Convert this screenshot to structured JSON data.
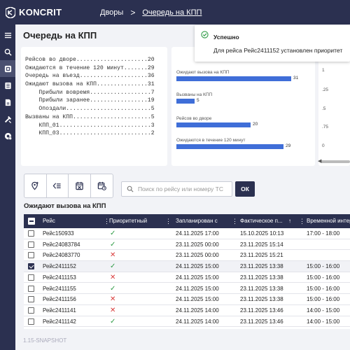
{
  "header": {
    "logo_text": "KONCRIT",
    "breadcrumb_1": "Дворы",
    "breadcrumb_sep": ">",
    "breadcrumb_2": "Очередь на КПП"
  },
  "sidebar": {
    "items": [
      {
        "icon": "menu-icon"
      },
      {
        "icon": "search-icon"
      },
      {
        "icon": "truck-queue-icon",
        "active": true
      },
      {
        "icon": "list-book-icon"
      },
      {
        "icon": "document-icon"
      },
      {
        "icon": "tools-icon"
      },
      {
        "icon": "settings-badge-icon"
      }
    ]
  },
  "page": {
    "title": "Очередь на КПП"
  },
  "stats": {
    "lines": [
      "Рейсов во дворе.....................20",
      "Ожидаются в течение 120 минут.......29",
      "Очередь на въезд....................36",
      "Ожидают вызова на КПП...............31",
      "    Прибыли вовремя..................7",
      "    Прибыли заранее.................19",
      "    Опоздали.........................5",
      "Вызваны на КПП.......................5",
      "    КПП_01...........................3",
      "    КПП_03...........................2"
    ]
  },
  "chart_data": {
    "type": "bar",
    "orientation": "horizontal",
    "categories": [
      "Ожидают вызова на КПП",
      "Вызваны на КПП",
      "Рейсов во дворе",
      "Ожидаются в течение 120 минут"
    ],
    "values": [
      31,
      5,
      20,
      29
    ],
    "xlim": [
      0,
      36
    ],
    "color": "#3f6ed8"
  },
  "chart2_ticks": [
    "1",
    ".25",
    ".5",
    ".75",
    "0"
  ],
  "toast": {
    "title": "Успешно",
    "message": "Для рейса Рейс2411152 установлен приоритет"
  },
  "toolbar": {
    "buttons": [
      "add-location-icon",
      "list-compare-icon",
      "calendar-cancel-icon",
      "calendar-clock-icon"
    ]
  },
  "search": {
    "placeholder": "Поиск по рейсу или номеру ТС",
    "value": "",
    "ok_label": "ОК"
  },
  "section": {
    "title": "Ожидают вызова на КПП"
  },
  "table": {
    "columns": [
      "Рейс",
      "Приоритетный",
      "Запланирован с",
      "Фактическое п...",
      "Временной интер"
    ],
    "rows": [
      {
        "trip": "Рейс150933",
        "priority": true,
        "planned": "24.11.2025 17:00",
        "actual": "15.10.2025 10:13",
        "interval": "17:00 - 18:00",
        "checked": false
      },
      {
        "trip": "Рейс24083784",
        "priority": true,
        "planned": "23.11.2025 00:00",
        "actual": "23.11.2025 15:14",
        "interval": "",
        "checked": false
      },
      {
        "trip": "Рейс24083770",
        "priority": false,
        "planned": "23.11.2025 00:00",
        "actual": "23.11.2025 15:21",
        "interval": "",
        "checked": false
      },
      {
        "trip": "Рейс2411152",
        "priority": true,
        "planned": "24.11.2025 15:00",
        "actual": "23.11.2025 13:38",
        "interval": "15:00 - 16:00",
        "checked": true
      },
      {
        "trip": "Рейс2411153",
        "priority": false,
        "planned": "24.11.2025 15:00",
        "actual": "23.11.2025 13:38",
        "interval": "15:00 - 16:00",
        "checked": false
      },
      {
        "trip": "Рейс2411155",
        "priority": true,
        "planned": "24.11.2025 15:00",
        "actual": "23.11.2025 13:38",
        "interval": "15:00 - 16:00",
        "checked": false
      },
      {
        "trip": "Рейс2411156",
        "priority": false,
        "planned": "24.11.2025 15:00",
        "actual": "23.11.2025 13:38",
        "interval": "15:00 - 16:00",
        "checked": false
      },
      {
        "trip": "Рейс2411141",
        "priority": false,
        "planned": "24.11.2025 14:00",
        "actual": "23.11.2025 13:46",
        "interval": "14:00 - 15:00",
        "checked": false
      },
      {
        "trip": "Рейс2411142",
        "priority": true,
        "planned": "24.11.2025 14:00",
        "actual": "23.11.2025 13:46",
        "interval": "14:00 - 15:00",
        "checked": false
      }
    ]
  },
  "footer": {
    "version": "1.15-SNAPSHOT"
  },
  "colors": {
    "navy": "#2b3050",
    "bar": "#3f6ed8",
    "ok": "#2e9b45",
    "bad": "#d93a3a"
  }
}
